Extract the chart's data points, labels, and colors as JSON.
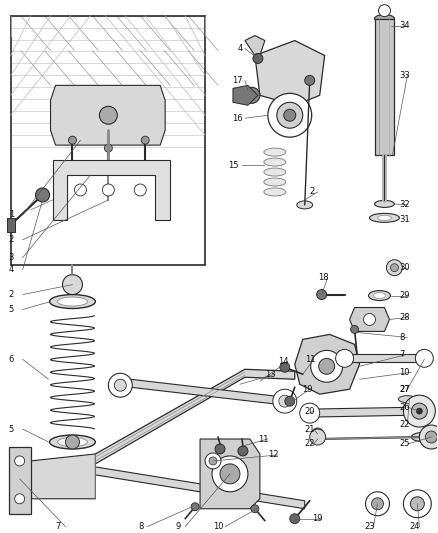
{
  "bg_color": "#ffffff",
  "fig_width": 4.38,
  "fig_height": 5.33,
  "dpi": 100,
  "line_gray": "#2a2a2a",
  "mid_gray": "#888888",
  "light_gray": "#cccccc",
  "fill_gray": "#d8d8d8",
  "font_size": 6.0,
  "label_color": "#111111"
}
